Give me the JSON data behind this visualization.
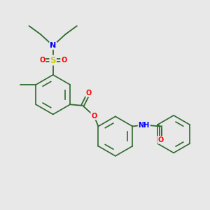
{
  "bg_color": "#e8e8e8",
  "bond_color": "#2d6b2d",
  "atom_colors": {
    "N": "#0000ff",
    "O": "#ff0000",
    "S": "#cccc00",
    "C": "#2d6b2d",
    "H": "#0000ff"
  },
  "font_size": 7.0
}
